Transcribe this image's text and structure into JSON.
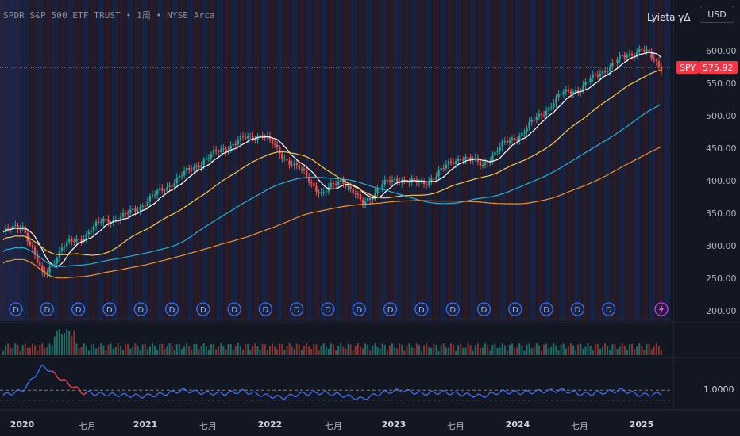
{
  "header": {
    "symbol": "SPDR S&P 500 ETF TRUST",
    "interval": "1周",
    "exchange": "NYSE Arca",
    "separator": "•",
    "indicator_name": "Lyieta γΔ",
    "currency": "USD"
  },
  "price_tag": {
    "ticker": "SPY",
    "value": "575.92",
    "color": "#f23645"
  },
  "colors": {
    "up": "#26a69a",
    "down": "#ef5350",
    "ma_white": "#ffffff",
    "ma_yellow": "#f7c948",
    "ma_cyan": "#26b0d8",
    "ma_orange": "#f0932b",
    "osc": "#3d6cf0",
    "osc_hot": "#f23645",
    "bg_red": "#3a1f2e",
    "bg_blue": "#1e2a55"
  },
  "dividend_marker": {
    "letter": "D",
    "count": 20
  },
  "earnings_marker": "lightning-icon",
  "chart_data": {
    "type": "line",
    "title": "",
    "x_labels": [
      "2020",
      "七月",
      "2021",
      "七月",
      "2022",
      "七月",
      "2023",
      "七月",
      "2024",
      "七月",
      "2025"
    ],
    "y_ticks": [
      200,
      250,
      300,
      350,
      400,
      450,
      500,
      550,
      600
    ],
    "y_tick_labels": [
      "200.00",
      "250.00",
      "300.00",
      "350.00",
      "400.00",
      "450.00",
      "500.00",
      "550.00",
      "600.00"
    ],
    "ylim": [
      185,
      625
    ],
    "last_price": 575.92,
    "x": [
      "2020-01",
      "2020-03",
      "2020-04",
      "2020-06",
      "2020-08",
      "2020-10",
      "2020-12",
      "2021-02",
      "2021-04",
      "2021-06",
      "2021-08",
      "2021-10",
      "2021-12",
      "2022-01",
      "2022-03",
      "2022-05",
      "2022-07",
      "2022-08",
      "2022-10",
      "2022-12",
      "2023-02",
      "2023-04",
      "2023-06",
      "2023-08",
      "2023-10",
      "2023-12",
      "2024-02",
      "2024-04",
      "2024-06",
      "2024-08",
      "2024-10",
      "2024-12",
      "2025-02",
      "2025-03"
    ],
    "series": [
      {
        "values": [
          322,
          332,
          253,
          300,
          315,
          340,
          345,
          365,
          388,
          410,
          432,
          450,
          465,
          474,
          440,
          415,
          380,
          405,
          365,
          395,
          405,
          395,
          418,
          440,
          425,
          455,
          475,
          505,
          535,
          545,
          570,
          590,
          605,
          576
        ]
      }
    ],
    "oscillator": {
      "reference_line_label": "1.0000",
      "reference_line": 1.0,
      "lower_line": 0.8,
      "values": [
        0.9,
        1.0,
        1.5,
        1.2,
        0.95,
        0.92,
        0.9,
        0.88,
        0.92,
        1.0,
        0.95,
        0.93,
        0.98,
        0.9,
        0.85,
        0.93,
        0.95,
        0.9,
        0.82,
        0.95,
        1.0,
        0.93,
        0.96,
        0.92,
        0.88,
        0.97,
        0.95,
        0.98,
        1.0,
        0.92,
        0.95,
        1.0,
        0.9,
        0.93
      ]
    }
  }
}
